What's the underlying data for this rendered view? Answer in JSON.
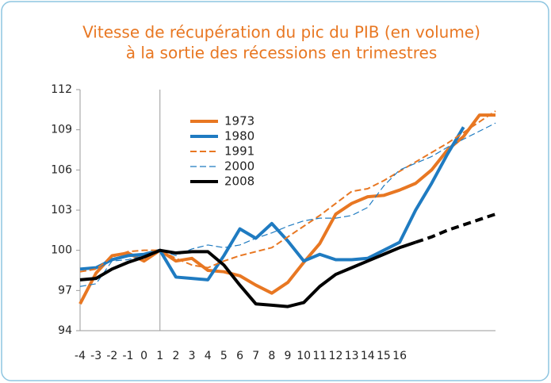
{
  "chart_data": {
    "type": "line",
    "title": "Vitesse de récupération du pic du PIB (en volume)",
    "subtitle": "à la sortie des récessions en trimestres",
    "x": [
      -4,
      -3,
      -2,
      -1,
      0,
      1,
      2,
      3,
      4,
      5,
      6,
      7,
      8,
      9,
      10,
      11,
      12,
      13,
      14,
      15,
      16,
      17,
      18,
      19,
      20,
      21,
      22
    ],
    "xlim": [
      -4,
      22
    ],
    "xticks": [
      -4,
      -3,
      -2,
      -1,
      0,
      1,
      2,
      3,
      4,
      5,
      6,
      7,
      8,
      9,
      10,
      11,
      12,
      13,
      14,
      15,
      16
    ],
    "ylim": [
      94,
      112
    ],
    "yticks": [
      94,
      97,
      100,
      103,
      106,
      109,
      112
    ],
    "vline": 1,
    "legend": "upper-left",
    "series": [
      {
        "name": "1973",
        "color": "#e87722",
        "style": "solid",
        "width": 4,
        "values": [
          96,
          98.3,
          99.6,
          99.8,
          99.2,
          100,
          99.2,
          99.4,
          98.5,
          98.4,
          98.1,
          97.4,
          96.8,
          97.6,
          99.1,
          100.5,
          102.7,
          103.5,
          104,
          104.1,
          104.5,
          105,
          106,
          107.5,
          108.5,
          110.1,
          110.1
        ]
      },
      {
        "name": "1980",
        "color": "#1f7bc1",
        "style": "solid",
        "width": 4,
        "values": [
          98.6,
          98.7,
          99.3,
          99.6,
          99.7,
          100,
          98,
          97.9,
          97.8,
          99.6,
          101.6,
          100.9,
          102,
          100.7,
          99.2,
          99.7,
          99.3,
          99.3,
          99.4,
          100,
          100.6,
          103,
          105,
          107.2,
          109.2,
          null,
          null
        ]
      },
      {
        "name": "1991",
        "color": "#e87722",
        "style": "dashed",
        "width": 2,
        "values": [
          98.4,
          98.6,
          99.5,
          99.9,
          100,
          100,
          99.4,
          98.9,
          98.7,
          99.2,
          99.6,
          99.9,
          100.2,
          101,
          101.8,
          102.6,
          103.5,
          104.4,
          104.6,
          105.2,
          105.9,
          106.6,
          107.3,
          108,
          108.8,
          109.6,
          110.4
        ]
      },
      {
        "name": "2000",
        "color": "#1f7bc1",
        "style": "dashed",
        "width": 1.2,
        "values": [
          97.3,
          97.5,
          99.2,
          99.3,
          99.6,
          100,
          99.6,
          100.1,
          100.4,
          100.2,
          100.4,
          100.9,
          101.3,
          101.8,
          102.2,
          102.4,
          102.4,
          102.6,
          103.2,
          104.8,
          106,
          106.5,
          107,
          107.7,
          108.3,
          108.9,
          109.5
        ]
      },
      {
        "name": "2008",
        "color": "#000000",
        "style": "solid",
        "width": 4,
        "dash_from": 21,
        "values": [
          97.8,
          97.9,
          98.6,
          99.1,
          99.5,
          100,
          99.8,
          99.9,
          99.9,
          98.9,
          97.4,
          96,
          95.9,
          95.8,
          96.1,
          97.3,
          98.2,
          98.7,
          99.2,
          99.7,
          100.2,
          100.6,
          101,
          101.5,
          101.9,
          102.3,
          102.7
        ]
      }
    ]
  }
}
